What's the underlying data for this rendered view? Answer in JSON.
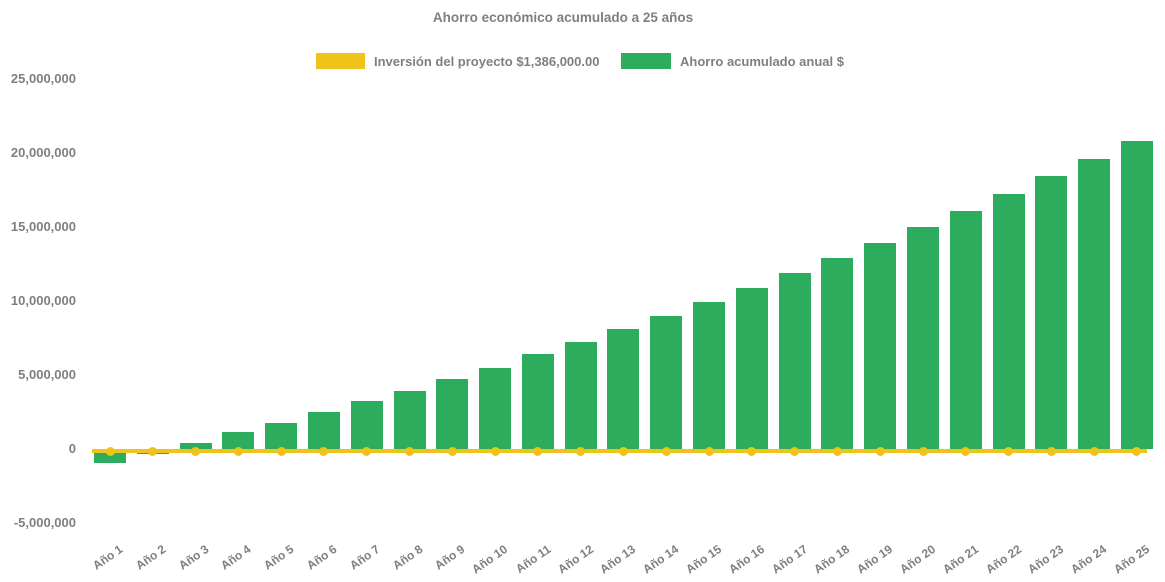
{
  "title": "Ahorro económico acumulado a 25 años",
  "colors": {
    "bar_green": "#2eac5e",
    "line_yellow": "#efc319",
    "text_gray": "#7f7f7f",
    "background": "#ffffff"
  },
  "legend": [
    {
      "label": "Inversión del proyecto $1,386,000.00",
      "color": "#efc319",
      "type": "line"
    },
    {
      "label": "Ahorro acumulado anual $",
      "color": "#2eac5e",
      "type": "bar"
    }
  ],
  "chart_data": {
    "type": "bar",
    "title": "Ahorro económico acumulado a 25 años",
    "categories": [
      "Año 1",
      "Año 2",
      "Año 3",
      "Año 4",
      "Año 5",
      "Año 6",
      "Año 7",
      "Año 8",
      "Año 9",
      "Año 10",
      "Año 11",
      "Año 12",
      "Año 13",
      "Año 14",
      "Año 15",
      "Año 16",
      "Año 17",
      "Año 18",
      "Año 19",
      "Año 20",
      "Año 21",
      "Año 22",
      "Año 23",
      "Año 24",
      "Año 25"
    ],
    "series": [
      {
        "name": "Ahorro acumulado anual $",
        "type": "bar",
        "color": "#2eac5e",
        "values": [
          -930000,
          -350000,
          380000,
          1130000,
          1780000,
          2500000,
          3230000,
          3950000,
          4740000,
          5500000,
          6390000,
          7200000,
          8090000,
          8990000,
          9930000,
          10870000,
          11870000,
          12890000,
          13900000,
          14980000,
          16100000,
          17210000,
          18450000,
          19600000,
          20830000
        ]
      },
      {
        "name": "Inversión del proyecto $1,386,000.00",
        "type": "line",
        "color": "#efc319",
        "marker": "circle",
        "constant_value": -150000,
        "investment_amount": "$1,386,000.00"
      }
    ],
    "xlabel": "",
    "ylabel": "",
    "ylim": [
      -5000000,
      25000000
    ],
    "ytick_values": [
      25000000,
      20000000,
      15000000,
      10000000,
      5000000,
      0,
      -5000000
    ],
    "ytick_labels": [
      "25,000,000",
      "20,000,000",
      "15,000,000",
      "10,000,000",
      "5,000,000",
      "0",
      "-5,000,000"
    ],
    "grid": false,
    "legend_position": "top"
  }
}
